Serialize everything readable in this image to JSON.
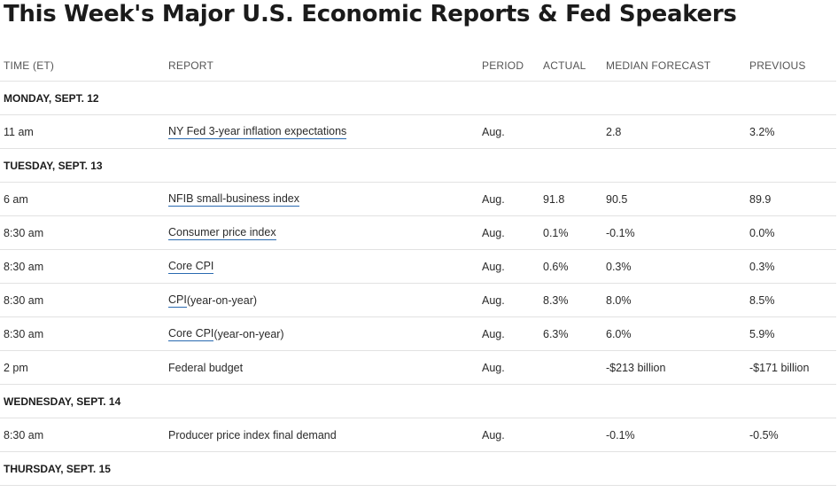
{
  "title": "This Week's Major U.S. Economic Reports & Fed Speakers",
  "columns": {
    "time": "TIME (ET)",
    "report": "REPORT",
    "period": "PERIOD",
    "actual": "ACTUAL",
    "forecast": "MEDIAN FORECAST",
    "previous": "PREVIOUS"
  },
  "days": [
    {
      "label": "MONDAY, SEPT. 12",
      "rows": [
        {
          "time": "11 am",
          "report_link": "NY Fed 3-year inflation expectations",
          "report_suffix": "",
          "period": "Aug.",
          "actual": "",
          "forecast": "2.8",
          "previous": "3.2%"
        }
      ]
    },
    {
      "label": "TUESDAY, SEPT. 13",
      "rows": [
        {
          "time": "6 am",
          "report_link": "NFIB small-business index",
          "report_suffix": "",
          "period": "Aug.",
          "actual": "91.8",
          "forecast": "90.5",
          "previous": "89.9"
        },
        {
          "time": "8:30 am",
          "report_link": "Consumer price index",
          "report_suffix": "",
          "period": "Aug.",
          "actual": "0.1%",
          "forecast": "-0.1%",
          "previous": "0.0%"
        },
        {
          "time": "8:30 am",
          "report_link": "Core CPI",
          "report_suffix": "",
          "period": "Aug.",
          "actual": "0.6%",
          "forecast": "0.3%",
          "previous": "0.3%"
        },
        {
          "time": "8:30 am",
          "report_link": "CPI",
          "report_suffix": " (year-on-year)",
          "period": "Aug.",
          "actual": "8.3%",
          "forecast": "8.0%",
          "previous": "8.5%"
        },
        {
          "time": "8:30 am",
          "report_link": "Core CPI",
          "report_suffix": " (year-on-year)",
          "period": "Aug.",
          "actual": "6.3%",
          "forecast": "6.0%",
          "previous": "5.9%"
        },
        {
          "time": "2 pm",
          "report_plain": "Federal budget",
          "period": "Aug.",
          "actual": "",
          "forecast": "-$213 billion",
          "previous": "-$171 billion"
        }
      ]
    },
    {
      "label": "WEDNESDAY, SEPT. 14",
      "rows": [
        {
          "time": "8:30 am",
          "report_plain": "Producer price index final demand",
          "period": "Aug.",
          "actual": "",
          "forecast": "-0.1%",
          "previous": "-0.5%"
        }
      ]
    },
    {
      "label": "THURSDAY, SEPT. 15",
      "rows": []
    }
  ]
}
